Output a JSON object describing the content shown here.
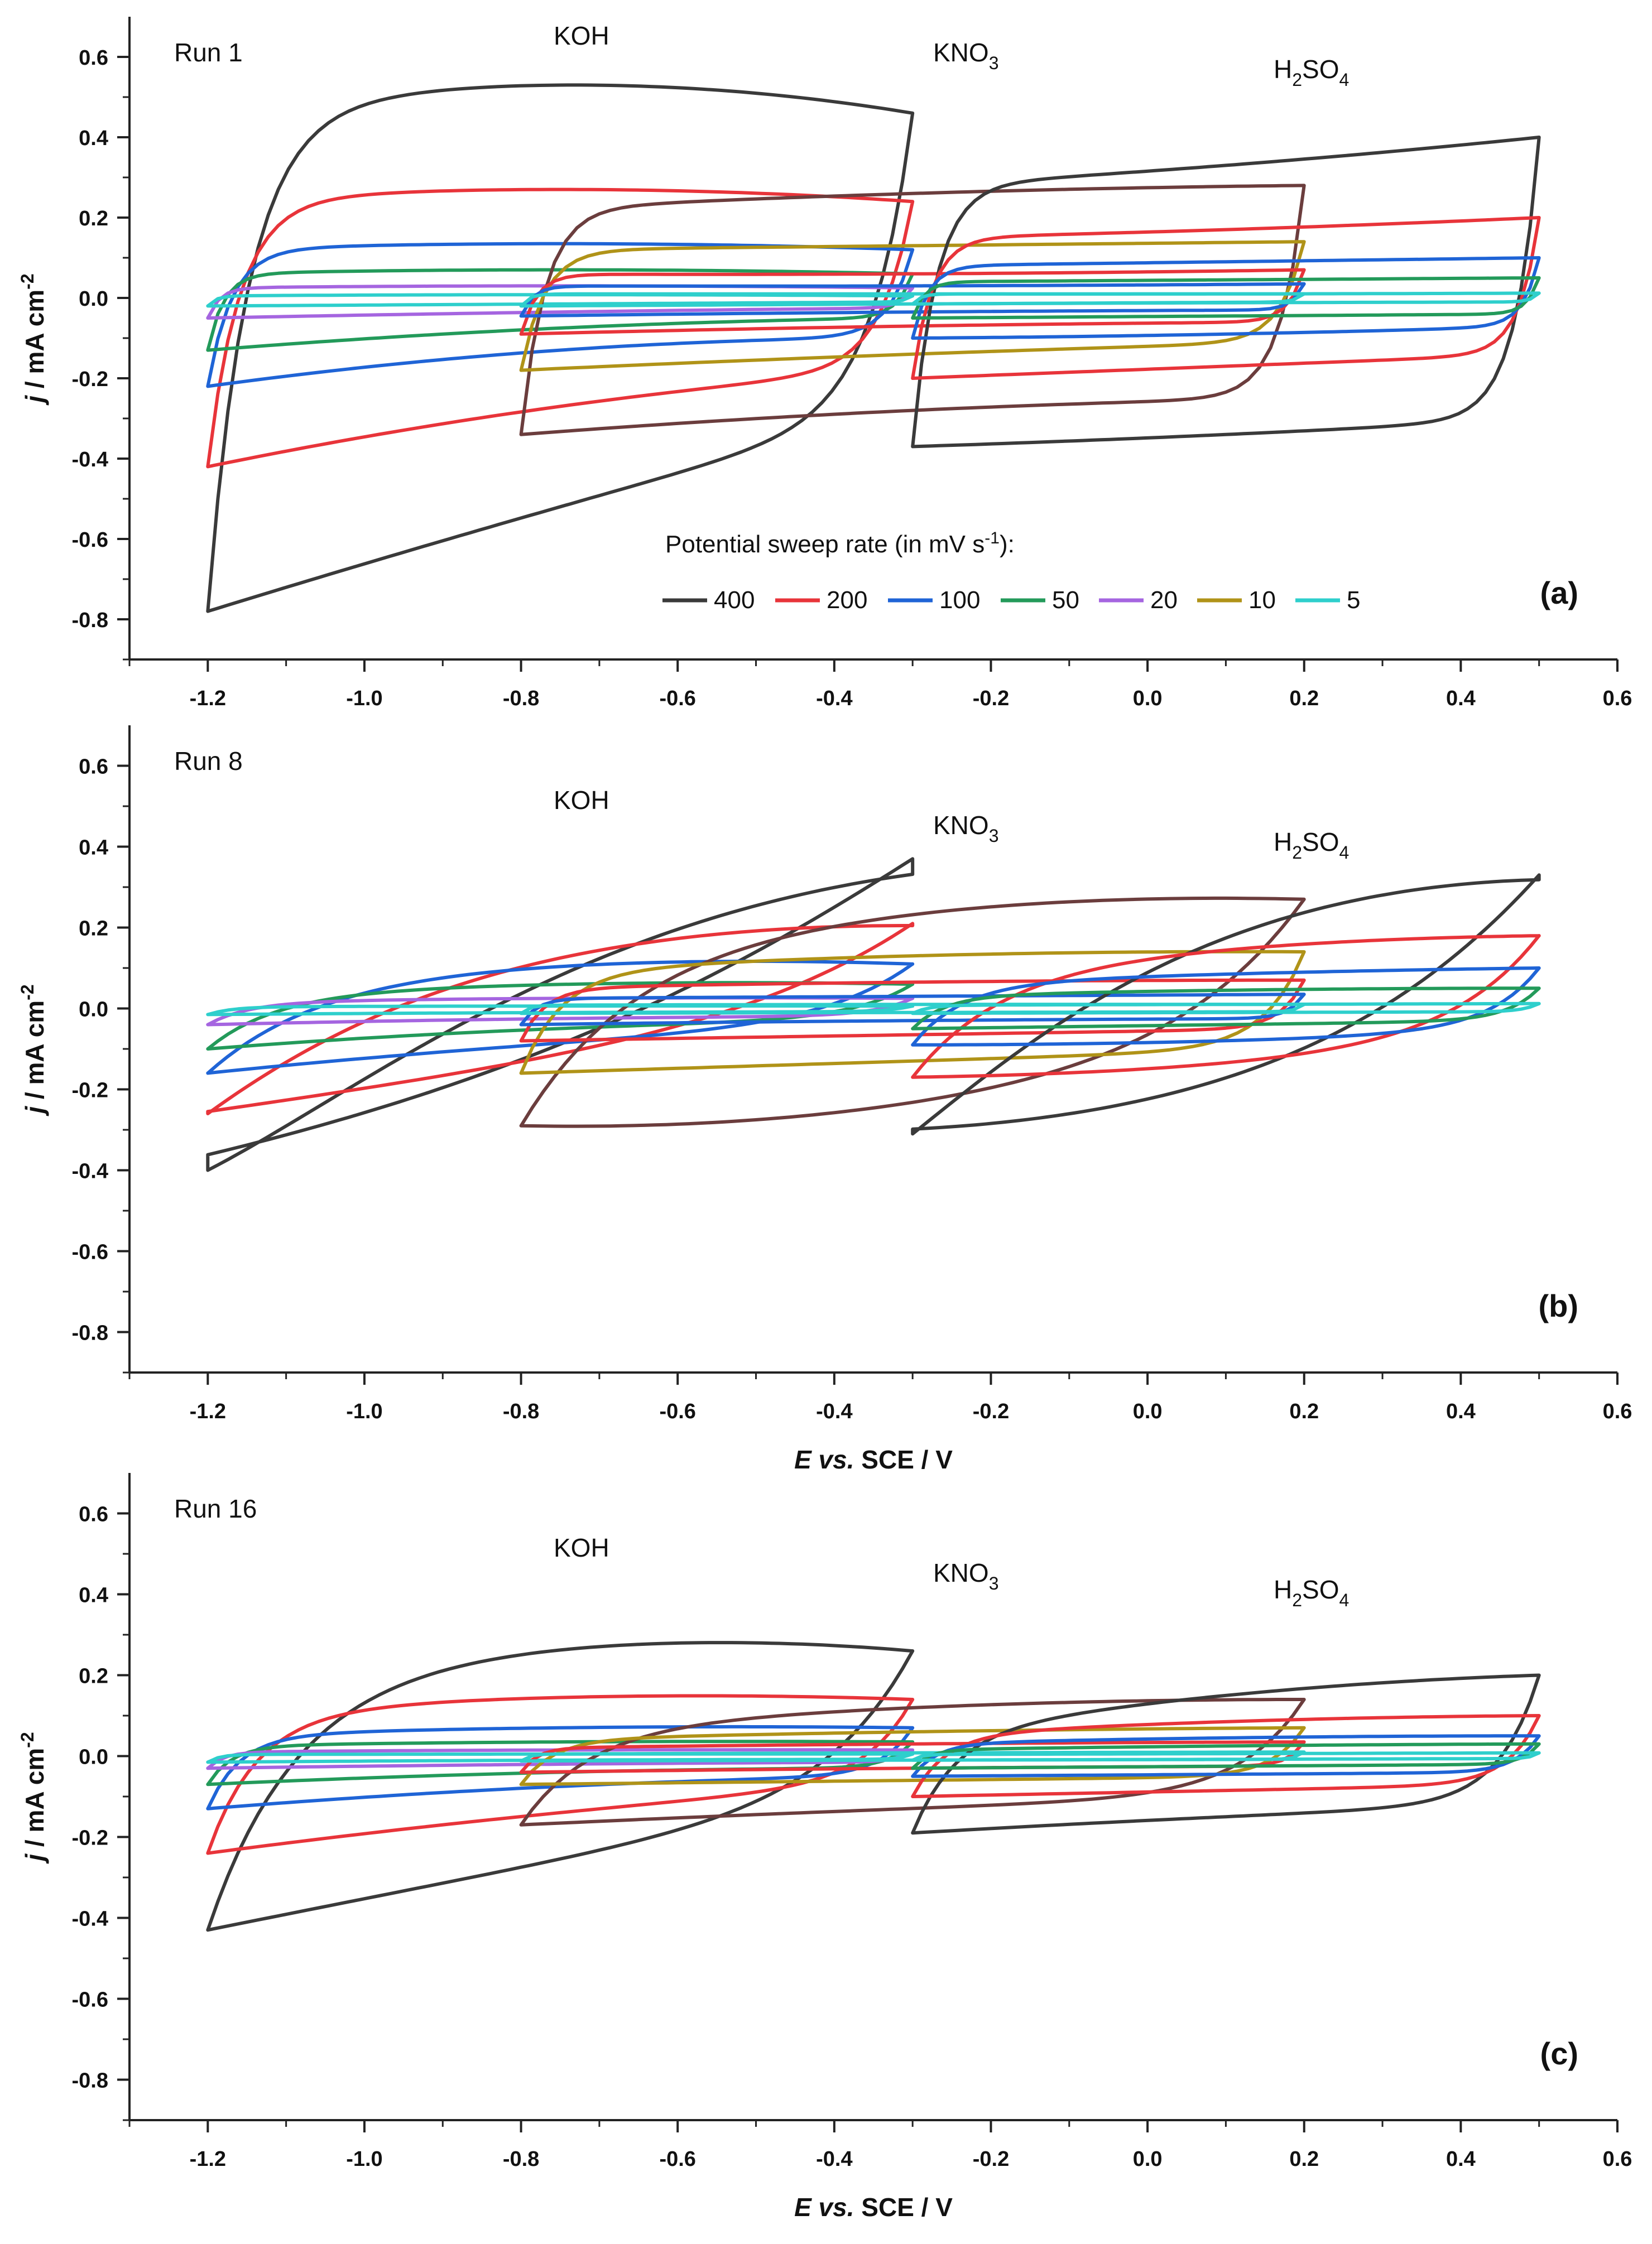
{
  "figure": {
    "legend_title": "Potential sweep rate (in mV s",
    "legend_title_sup": "-1",
    "legend_title_end": "):",
    "ylabel": {
      "j": "j",
      "rest": " / mA cm",
      "sup": "-2"
    },
    "xlabel": {
      "E": "E",
      "vs": " vs.",
      "rest": " SCE / V"
    },
    "electrolytes": {
      "koh": "KOH",
      "kno3": {
        "main": "KNO",
        "sub": "3"
      },
      "h2so4": {
        "a": "H",
        "s1": "2",
        "b": "SO",
        "s2": "4"
      }
    }
  },
  "chart_data": [
    {
      "type": "line",
      "panel_label": "(a)",
      "title": "Run 1",
      "xlim": [
        -1.3,
        0.6
      ],
      "ylim": [
        -0.9,
        0.7
      ],
      "x_ticks": [
        "-1.2",
        "-1.0",
        "-0.8",
        "-0.6",
        "-0.4",
        "-0.2",
        "0.0",
        "0.2",
        "0.4",
        "0.6"
      ],
      "y_ticks": [
        "0.6",
        "0.4",
        "0.2",
        "0.0",
        "-0.2",
        "-0.4",
        "-0.6",
        "-0.8"
      ],
      "show_xlabel": false,
      "legend": {
        "entries": [
          "400",
          "200",
          "100",
          "50",
          "20",
          "10",
          "5"
        ],
        "colors": [
          "#3a3a3a",
          "#e8343a",
          "#1f64d6",
          "#239a5a",
          "#a565e0",
          "#b09318",
          "#2ecfcc"
        ]
      },
      "series": [
        {
          "name": "KOH 400",
          "color": "#3a3a3a",
          "ox": -1.2,
          "rx": -0.3,
          "anodic": [
            0.45,
            0.53,
            0.46
          ],
          "cathodic": [
            -0.78,
            -0.52,
            -0.28
          ],
          "sharp": 0.05
        },
        {
          "name": "KOH 200",
          "color": "#e8343a",
          "ox": -1.2,
          "rx": -0.3,
          "anodic": [
            0.24,
            0.27,
            0.24
          ],
          "cathodic": [
            -0.42,
            -0.27,
            -0.18
          ],
          "sharp": 0.04
        },
        {
          "name": "KOH 100",
          "color": "#1f64d6",
          "ox": -1.2,
          "rx": -0.3,
          "anodic": [
            0.12,
            0.135,
            0.12
          ],
          "cathodic": [
            -0.22,
            -0.13,
            -0.1
          ],
          "sharp": 0.03
        },
        {
          "name": "KOH 50",
          "color": "#239a5a",
          "ox": -1.2,
          "rx": -0.3,
          "anodic": [
            0.06,
            0.07,
            0.06
          ],
          "cathodic": [
            -0.13,
            -0.075,
            -0.05
          ],
          "sharp": 0.02
        },
        {
          "name": "KOH 20",
          "color": "#a565e0",
          "ox": -1.2,
          "rx": -0.3,
          "anodic": [
            0.025,
            0.03,
            0.025
          ],
          "cathodic": [
            -0.05,
            -0.035,
            -0.025
          ],
          "sharp": 0.015
        },
        {
          "name": "KOH 5",
          "color": "#2ecfcc",
          "ox": -1.2,
          "rx": -0.3,
          "anodic": [
            0.005,
            0.008,
            0.005
          ],
          "cathodic": [
            -0.02,
            -0.015,
            -0.01
          ],
          "sharp": 0.01
        },
        {
          "name": "KNO3 400",
          "color": "#6b3d3d",
          "ox": -0.8,
          "rx": 0.2,
          "anodic": [
            0.22,
            0.26,
            0.28
          ],
          "cathodic": [
            -0.34,
            -0.28,
            -0.25
          ],
          "sharp": 0.03
        },
        {
          "name": "KNO3 10",
          "color": "#b09318",
          "ox": -0.8,
          "rx": 0.2,
          "anodic": [
            0.12,
            0.13,
            0.14
          ],
          "cathodic": [
            -0.18,
            -0.14,
            -0.11
          ],
          "sharp": 0.03
        },
        {
          "name": "KNO3 200",
          "color": "#e8343a",
          "ox": -0.8,
          "rx": 0.2,
          "anodic": [
            0.06,
            0.06,
            0.07
          ],
          "cathodic": [
            -0.09,
            -0.07,
            -0.06
          ],
          "sharp": 0.02
        },
        {
          "name": "KNO3 100",
          "color": "#1f64d6",
          "ox": -0.8,
          "rx": 0.2,
          "anodic": [
            0.03,
            0.03,
            0.035
          ],
          "cathodic": [
            -0.045,
            -0.035,
            -0.03
          ],
          "sharp": 0.015
        },
        {
          "name": "KNO3 5",
          "color": "#2ecfcc",
          "ox": -0.8,
          "rx": 0.2,
          "anodic": [
            0.01,
            0.01,
            0.01
          ],
          "cathodic": [
            -0.02,
            -0.015,
            -0.01
          ],
          "sharp": 0.01
        },
        {
          "name": "H2SO4 400",
          "color": "#3a3a3a",
          "ox": -0.3,
          "rx": 0.5,
          "anodic": [
            0.28,
            0.33,
            0.4
          ],
          "cathodic": [
            -0.37,
            -0.34,
            -0.3
          ],
          "sharp": 0.03
        },
        {
          "name": "H2SO4 200",
          "color": "#e8343a",
          "ox": -0.3,
          "rx": 0.5,
          "anodic": [
            0.15,
            0.17,
            0.2
          ],
          "cathodic": [
            -0.2,
            -0.17,
            -0.14
          ],
          "sharp": 0.025
        },
        {
          "name": "H2SO4 100",
          "color": "#1f64d6",
          "ox": -0.3,
          "rx": 0.5,
          "anodic": [
            0.08,
            0.09,
            0.1
          ],
          "cathodic": [
            -0.1,
            -0.09,
            -0.07
          ],
          "sharp": 0.02
        },
        {
          "name": "H2SO4 50",
          "color": "#239a5a",
          "ox": -0.3,
          "rx": 0.5,
          "anodic": [
            0.04,
            0.045,
            0.05
          ],
          "cathodic": [
            -0.05,
            -0.045,
            -0.04
          ],
          "sharp": 0.015
        },
        {
          "name": "H2SO4 5",
          "color": "#2ecfcc",
          "ox": -0.3,
          "rx": 0.5,
          "anodic": [
            0.01,
            0.01,
            0.012
          ],
          "cathodic": [
            -0.015,
            -0.012,
            -0.01
          ],
          "sharp": 0.01
        }
      ]
    },
    {
      "type": "line",
      "panel_label": "(b)",
      "title": "Run 8",
      "xlim": [
        -1.3,
        0.6
      ],
      "ylim": [
        -0.9,
        0.7
      ],
      "x_ticks": [
        "-1.2",
        "-1.0",
        "-0.8",
        "-0.6",
        "-0.4",
        "-0.2",
        "0.0",
        "0.2",
        "0.4",
        "0.6"
      ],
      "y_ticks": [
        "0.6",
        "0.4",
        "0.2",
        "0.0",
        "-0.2",
        "-0.4",
        "-0.6",
        "-0.8"
      ],
      "show_xlabel": true,
      "series": [
        {
          "name": "KOH 400",
          "color": "#3a3a3a",
          "ox": -1.2,
          "rx": -0.3,
          "anodic": [
            -0.1,
            0.22,
            0.37
          ],
          "cathodic": [
            -0.4,
            -0.22,
            0.0
          ],
          "sharp": 0.3
        },
        {
          "name": "KOH 200",
          "color": "#e8343a",
          "ox": -1.2,
          "rx": -0.3,
          "anodic": [
            0.02,
            0.17,
            0.21
          ],
          "cathodic": [
            -0.26,
            -0.15,
            -0.05
          ],
          "sharp": 0.2
        },
        {
          "name": "KOH 100",
          "color": "#1f64d6",
          "ox": -1.2,
          "rx": -0.3,
          "anodic": [
            0.05,
            0.11,
            0.11
          ],
          "cathodic": [
            -0.16,
            -0.09,
            -0.06
          ],
          "sharp": 0.12
        },
        {
          "name": "KOH 50",
          "color": "#239a5a",
          "ox": -1.2,
          "rx": -0.3,
          "anodic": [
            0.03,
            0.06,
            0.06
          ],
          "cathodic": [
            -0.1,
            -0.05,
            -0.035
          ],
          "sharp": 0.08
        },
        {
          "name": "KOH 20",
          "color": "#a565e0",
          "ox": -1.2,
          "rx": -0.3,
          "anodic": [
            0.015,
            0.025,
            0.025
          ],
          "cathodic": [
            -0.04,
            -0.025,
            -0.02
          ],
          "sharp": 0.05
        },
        {
          "name": "KOH 5",
          "color": "#2ecfcc",
          "ox": -1.2,
          "rx": -0.3,
          "anodic": [
            0.004,
            0.006,
            0.006
          ],
          "cathodic": [
            -0.015,
            -0.01,
            -0.008
          ],
          "sharp": 0.03
        },
        {
          "name": "KNO3 400",
          "color": "#6b3d3d",
          "ox": -0.8,
          "rx": 0.2,
          "anodic": [
            0.1,
            0.24,
            0.27
          ],
          "cathodic": [
            -0.29,
            -0.24,
            -0.05
          ],
          "sharp": 0.12
        },
        {
          "name": "KNO3 10",
          "color": "#b09318",
          "ox": -0.8,
          "rx": 0.2,
          "anodic": [
            0.09,
            0.13,
            0.14
          ],
          "cathodic": [
            -0.16,
            -0.13,
            -0.1
          ],
          "sharp": 0.05
        },
        {
          "name": "KNO3 200",
          "color": "#e8343a",
          "ox": -0.8,
          "rx": 0.2,
          "anodic": [
            0.05,
            0.065,
            0.07
          ],
          "cathodic": [
            -0.08,
            -0.065,
            -0.05
          ],
          "sharp": 0.03
        },
        {
          "name": "KNO3 100",
          "color": "#1f64d6",
          "ox": -0.8,
          "rx": 0.2,
          "anodic": [
            0.025,
            0.03,
            0.035
          ],
          "cathodic": [
            -0.04,
            -0.03,
            -0.025
          ],
          "sharp": 0.02
        },
        {
          "name": "KNO3 5",
          "color": "#2ecfcc",
          "ox": -0.8,
          "rx": 0.2,
          "anodic": [
            0.008,
            0.01,
            0.01
          ],
          "cathodic": [
            -0.012,
            -0.01,
            -0.008
          ],
          "sharp": 0.01
        },
        {
          "name": "H2SO4 400",
          "color": "#3a3a3a",
          "ox": -0.3,
          "rx": 0.5,
          "anodic": [
            0.0,
            0.25,
            0.33
          ],
          "cathodic": [
            -0.31,
            -0.25,
            -0.1
          ],
          "sharp": 0.2
        },
        {
          "name": "H2SO4 200",
          "color": "#e8343a",
          "ox": -0.3,
          "rx": 0.5,
          "anodic": [
            0.08,
            0.15,
            0.18
          ],
          "cathodic": [
            -0.17,
            -0.14,
            -0.07
          ],
          "sharp": 0.1
        },
        {
          "name": "H2SO4 100",
          "color": "#1f64d6",
          "ox": -0.3,
          "rx": 0.5,
          "anodic": [
            0.06,
            0.085,
            0.1
          ],
          "cathodic": [
            -0.09,
            -0.08,
            -0.05
          ],
          "sharp": 0.06
        },
        {
          "name": "H2SO4 50",
          "color": "#239a5a",
          "ox": -0.3,
          "rx": 0.5,
          "anodic": [
            0.03,
            0.045,
            0.05
          ],
          "cathodic": [
            -0.05,
            -0.04,
            -0.03
          ],
          "sharp": 0.04
        },
        {
          "name": "H2SO4 5",
          "color": "#2ecfcc",
          "ox": -0.3,
          "rx": 0.5,
          "anodic": [
            0.008,
            0.01,
            0.012
          ],
          "cathodic": [
            -0.012,
            -0.01,
            -0.008
          ],
          "sharp": 0.02
        }
      ]
    },
    {
      "type": "line",
      "panel_label": "(c)",
      "title": "Run 16",
      "xlim": [
        -1.3,
        0.6
      ],
      "ylim": [
        -0.9,
        0.7
      ],
      "x_ticks": [
        "-1.2",
        "-1.0",
        "-0.8",
        "-0.6",
        "-0.4",
        "-0.2",
        "0.0",
        "0.2",
        "0.4",
        "0.6"
      ],
      "y_ticks": [
        "0.6",
        "0.4",
        "0.2",
        "0.0",
        "-0.2",
        "-0.4",
        "-0.6",
        "-0.8"
      ],
      "show_xlabel": true,
      "series": [
        {
          "name": "KOH 400",
          "color": "#3a3a3a",
          "ox": -1.2,
          "rx": -0.3,
          "anodic": [
            0.15,
            0.27,
            0.26
          ],
          "cathodic": [
            -0.43,
            -0.26,
            -0.1
          ],
          "sharp": 0.1
        },
        {
          "name": "KOH 200",
          "color": "#e8343a",
          "ox": -1.2,
          "rx": -0.3,
          "anodic": [
            0.1,
            0.145,
            0.14
          ],
          "cathodic": [
            -0.24,
            -0.14,
            -0.07
          ],
          "sharp": 0.06
        },
        {
          "name": "KOH 100",
          "color": "#1f64d6",
          "ox": -1.2,
          "rx": -0.3,
          "anodic": [
            0.05,
            0.07,
            0.07
          ],
          "cathodic": [
            -0.13,
            -0.075,
            -0.05
          ],
          "sharp": 0.04
        },
        {
          "name": "KOH 50",
          "color": "#239a5a",
          "ox": -1.2,
          "rx": -0.3,
          "anodic": [
            0.025,
            0.035,
            0.035
          ],
          "cathodic": [
            -0.07,
            -0.04,
            -0.03
          ],
          "sharp": 0.03
        },
        {
          "name": "KOH 20",
          "color": "#a565e0",
          "ox": -1.2,
          "rx": -0.3,
          "anodic": [
            0.01,
            0.015,
            0.015
          ],
          "cathodic": [
            -0.03,
            -0.02,
            -0.015
          ],
          "sharp": 0.02
        },
        {
          "name": "KOH 5",
          "color": "#2ecfcc",
          "ox": -1.2,
          "rx": -0.3,
          "anodic": [
            0.004,
            0.005,
            0.005
          ],
          "cathodic": [
            -0.015,
            -0.01,
            -0.008
          ],
          "sharp": 0.015
        },
        {
          "name": "KNO3 400",
          "color": "#6b3d3d",
          "ox": -0.8,
          "rx": 0.2,
          "anodic": [
            0.06,
            0.12,
            0.14
          ],
          "cathodic": [
            -0.17,
            -0.13,
            -0.1
          ],
          "sharp": 0.08
        },
        {
          "name": "KNO3 10",
          "color": "#b09318",
          "ox": -0.8,
          "rx": 0.2,
          "anodic": [
            0.04,
            0.06,
            0.07
          ],
          "cathodic": [
            -0.07,
            -0.06,
            -0.05
          ],
          "sharp": 0.04
        },
        {
          "name": "KNO3 200",
          "color": "#e8343a",
          "ox": -0.8,
          "rx": 0.2,
          "anodic": [
            0.02,
            0.03,
            0.035
          ],
          "cathodic": [
            -0.04,
            -0.03,
            -0.025
          ],
          "sharp": 0.02
        },
        {
          "name": "KNO3 5",
          "color": "#2ecfcc",
          "ox": -0.8,
          "rx": 0.2,
          "anodic": [
            0.005,
            0.008,
            0.01
          ],
          "cathodic": [
            -0.012,
            -0.01,
            -0.008
          ],
          "sharp": 0.01
        },
        {
          "name": "H2SO4 400",
          "color": "#3a3a3a",
          "ox": -0.3,
          "rx": 0.5,
          "anodic": [
            0.05,
            0.15,
            0.2
          ],
          "cathodic": [
            -0.19,
            -0.15,
            -0.12
          ],
          "sharp": 0.05
        },
        {
          "name": "H2SO4 200",
          "color": "#e8343a",
          "ox": -0.3,
          "rx": 0.5,
          "anodic": [
            0.05,
            0.085,
            0.1
          ],
          "cathodic": [
            -0.1,
            -0.085,
            -0.07
          ],
          "sharp": 0.04
        },
        {
          "name": "H2SO4 100",
          "color": "#1f64d6",
          "ox": -0.3,
          "rx": 0.5,
          "anodic": [
            0.03,
            0.045,
            0.05
          ],
          "cathodic": [
            -0.05,
            -0.045,
            -0.04
          ],
          "sharp": 0.03
        },
        {
          "name": "H2SO4 50",
          "color": "#239a5a",
          "ox": -0.3,
          "rx": 0.5,
          "anodic": [
            0.015,
            0.025,
            0.03
          ],
          "cathodic": [
            -0.03,
            -0.025,
            -0.02
          ],
          "sharp": 0.02
        },
        {
          "name": "H2SO4 5",
          "color": "#2ecfcc",
          "ox": -0.3,
          "rx": 0.5,
          "anodic": [
            0.004,
            0.006,
            0.008
          ],
          "cathodic": [
            -0.01,
            -0.008,
            -0.006
          ],
          "sharp": 0.01
        }
      ]
    }
  ]
}
